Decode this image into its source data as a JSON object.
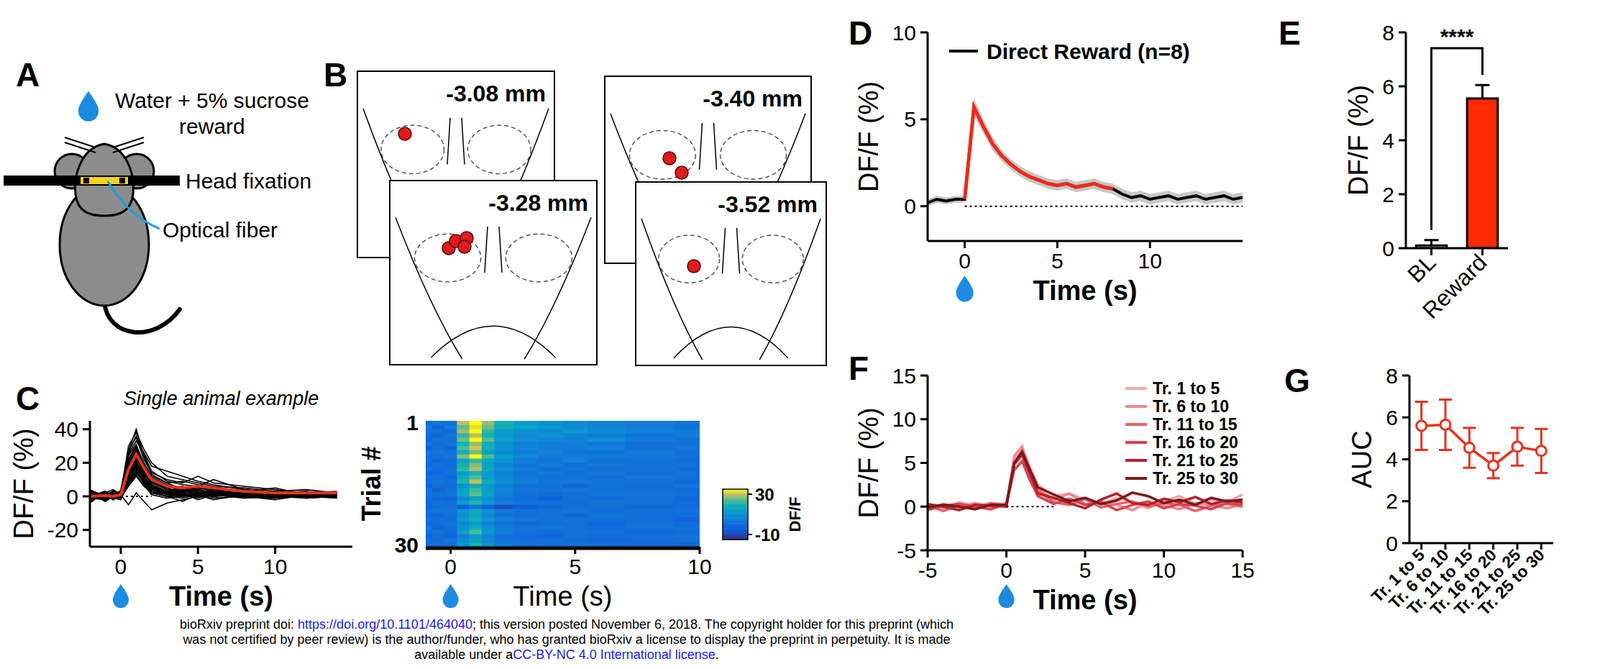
{
  "panel_a": {
    "panel": "A",
    "reward": [
      "Water + 5% sucrose",
      "reward"
    ],
    "fixation": "Head fixation",
    "fiber": "Optical fiber"
  },
  "panel_b": {
    "panel": "B",
    "sections": [
      "-3.08 mm",
      "-3.28 mm",
      "-3.40 mm",
      "-3.52 mm"
    ]
  },
  "chart_data": [
    {
      "type": "line",
      "panel": "C",
      "title": "Single animal example",
      "xlabel": "Time (s)",
      "ylabel": "DF/F (%)",
      "x": [
        -2,
        -1,
        -0.5,
        0,
        0.5,
        1,
        1.5,
        2,
        3,
        4,
        5,
        6,
        8,
        10,
        12,
        14
      ],
      "xlim": [
        -2,
        15
      ],
      "xticks": [
        0,
        5,
        10
      ],
      "ylim": [
        -30,
        45
      ],
      "yticks": [
        -20,
        0,
        20,
        40
      ],
      "color": "#000000",
      "trials": [
        [
          2,
          -1,
          3,
          2,
          30,
          38,
          28,
          20,
          12,
          10,
          8,
          6,
          5,
          3,
          4,
          2
        ],
        [
          0,
          3,
          -2,
          4,
          25,
          33,
          26,
          18,
          15,
          12,
          9,
          7,
          4,
          2,
          3,
          1
        ],
        [
          -3,
          2,
          1,
          0,
          28,
          35,
          22,
          14,
          10,
          8,
          12,
          8,
          6,
          4,
          2,
          3
        ],
        [
          4,
          0,
          -1,
          3,
          22,
          30,
          20,
          12,
          8,
          9,
          7,
          5,
          3,
          5,
          1,
          2
        ],
        [
          1,
          -2,
          2,
          1,
          26,
          36,
          25,
          15,
          9,
          7,
          6,
          10,
          4,
          2,
          3,
          0
        ],
        [
          -1,
          1,
          0,
          2,
          20,
          28,
          18,
          9,
          6,
          4,
          5,
          3,
          2,
          1,
          2,
          1
        ],
        [
          3,
          -3,
          1,
          -2,
          24,
          31,
          19,
          11,
          7,
          5,
          4,
          6,
          2,
          3,
          0,
          2
        ],
        [
          0,
          2,
          4,
          1,
          18,
          26,
          14,
          8,
          5,
          6,
          3,
          2,
          4,
          1,
          2,
          -1
        ],
        [
          -2,
          0,
          1,
          3,
          27,
          40,
          24,
          13,
          8,
          4,
          5,
          4,
          3,
          2,
          1,
          2
        ],
        [
          2,
          1,
          -1,
          0,
          15,
          22,
          16,
          10,
          4,
          3,
          6,
          2,
          1,
          0,
          2,
          1
        ],
        [
          1,
          -1,
          2,
          0,
          19,
          27,
          15,
          7,
          3,
          5,
          2,
          4,
          1,
          2,
          -1,
          0
        ],
        [
          -4,
          3,
          0,
          1,
          22,
          29,
          17,
          9,
          5,
          2,
          3,
          1,
          2,
          0,
          1,
          2
        ],
        [
          0,
          -2,
          -1,
          2,
          12,
          20,
          12,
          6,
          2,
          4,
          1,
          3,
          0,
          2,
          1,
          0
        ],
        [
          3,
          1,
          2,
          -1,
          17,
          24,
          13,
          8,
          4,
          1,
          2,
          0,
          3,
          1,
          0,
          1
        ],
        [
          -1,
          0,
          3,
          1,
          21,
          30,
          18,
          10,
          6,
          3,
          4,
          2,
          1,
          -1,
          2,
          0
        ],
        [
          2,
          -3,
          0,
          0,
          10,
          18,
          11,
          5,
          1,
          2,
          -2,
          1,
          0,
          3,
          1,
          2
        ],
        [
          0,
          2,
          -2,
          1,
          14,
          23,
          14,
          7,
          3,
          2,
          4,
          2,
          1,
          0,
          -1,
          1
        ],
        [
          -2,
          1,
          1,
          3,
          16,
          25,
          15,
          6,
          2,
          0,
          1,
          3,
          2,
          1,
          0,
          1
        ],
        [
          1,
          0,
          -1,
          -2,
          8,
          14,
          9,
          3,
          0,
          -3,
          1,
          0,
          2,
          -1,
          1,
          0
        ],
        [
          4,
          -1,
          2,
          0,
          13,
          21,
          12,
          5,
          2,
          1,
          0,
          2,
          1,
          0,
          2,
          -1
        ],
        [
          -1,
          -2,
          0,
          1,
          -5,
          2,
          -3,
          -8,
          -4,
          -2,
          0,
          1,
          -1,
          0,
          1,
          0
        ],
        [
          0,
          1,
          3,
          2,
          11,
          17,
          10,
          4,
          1,
          2,
          3,
          0,
          1,
          2,
          0,
          1
        ],
        [
          2,
          0,
          -1,
          1,
          9,
          16,
          8,
          2,
          0,
          1,
          -1,
          2,
          0,
          1,
          -1,
          0
        ],
        [
          -3,
          2,
          1,
          0,
          12,
          19,
          11,
          6,
          3,
          1,
          2,
          1,
          0,
          -2,
          1,
          1
        ],
        [
          1,
          -1,
          0,
          2,
          7,
          13,
          7,
          1,
          -1,
          0,
          1,
          -2,
          1,
          0,
          2,
          0
        ],
        [
          0,
          3,
          -2,
          1,
          10,
          18,
          9,
          4,
          2,
          3,
          1,
          0,
          2,
          1,
          0,
          -1
        ],
        [
          -1,
          0,
          2,
          0,
          14,
          24,
          12,
          5,
          1,
          0,
          2,
          1,
          -1,
          0,
          1,
          0
        ],
        [
          2,
          -2,
          1,
          -1,
          6,
          12,
          6,
          2,
          0,
          -1,
          1,
          0,
          1,
          2,
          0,
          1
        ],
        [
          0,
          1,
          0,
          3,
          9,
          15,
          8,
          3,
          1,
          2,
          0,
          -1,
          0,
          1,
          1,
          0
        ],
        [
          -2,
          0,
          1,
          1,
          11,
          20,
          10,
          4,
          2,
          1,
          1,
          2,
          0,
          -1,
          0,
          1
        ]
      ],
      "mean": {
        "color": "#e8321e",
        "values": [
          0,
          0.5,
          0,
          1,
          16,
          25,
          17,
          10,
          6,
          5,
          6,
          5,
          3,
          2,
          2,
          2
        ]
      },
      "heatmap": {
        "ylabel": "Trial #",
        "xlabel": "Time (s)",
        "xlim": [
          -1,
          10
        ],
        "xticks": [
          0,
          5,
          10
        ],
        "yticks": [
          1,
          30
        ],
        "color_range": [
          -15,
          35
        ],
        "color_ticks": [
          30,
          -10
        ],
        "color_label": "DF/F"
      }
    },
    {
      "type": "line",
      "panel": "D",
      "xlabel": "Time (s)",
      "ylabel": "DF/F (%)",
      "x": [
        -2,
        -1.5,
        -1,
        -0.5,
        0,
        0.5,
        1,
        1.5,
        2,
        2.5,
        3,
        3.5,
        4,
        4.5,
        5,
        5.5,
        6,
        6.5,
        7,
        7.5,
        8,
        8.5,
        9,
        9.5,
        10,
        10.5,
        11,
        11.5,
        12,
        12.5,
        13,
        13.5,
        14,
        14.5,
        15
      ],
      "xlim": [
        -2,
        15
      ],
      "xticks": [
        0,
        5,
        10
      ],
      "ylim": [
        -2,
        10
      ],
      "yticks": [
        0,
        5,
        10
      ],
      "legend": "upper left",
      "series": [
        {
          "name": "Direct Reward (n=8)",
          "color": "#000000",
          "values": [
            0.2,
            0.4,
            0.3,
            0.4,
            0.4,
            5.7,
            4.6,
            3.6,
            2.9,
            2.4,
            2.0,
            1.7,
            1.5,
            1.3,
            1.2,
            1.3,
            1.1,
            1.2,
            1.3,
            1.1,
            1.0,
            0.7,
            0.5,
            0.6,
            0.4,
            0.5,
            0.6,
            0.4,
            0.5,
            0.6,
            0.4,
            0.5,
            0.6,
            0.4,
            0.5
          ],
          "sem": [
            0.2,
            0.2,
            0.2,
            0.2,
            0.2,
            0.5,
            0.4,
            0.4,
            0.3,
            0.3,
            0.3,
            0.3,
            0.3,
            0.3,
            0.3,
            0.3,
            0.3,
            0.3,
            0.3,
            0.3,
            0.3,
            0.3,
            0.3,
            0.3,
            0.3,
            0.3,
            0.3,
            0.3,
            0.3,
            0.3,
            0.3,
            0.3,
            0.3,
            0.3,
            0.3
          ]
        }
      ],
      "highlight": {
        "x": [
          0,
          8
        ],
        "color": "#ee2a1b"
      }
    },
    {
      "type": "bar",
      "panel": "E",
      "ylabel": "DF/F (%)",
      "categories": [
        "BL",
        "Reward"
      ],
      "values": [
        0.1,
        5.55
      ],
      "errors": [
        0.2,
        0.5
      ],
      "colors": [
        "#ffffff",
        "#ff2a00"
      ],
      "ylim": [
        0,
        8
      ],
      "yticks": [
        0,
        2,
        4,
        6,
        8
      ],
      "annotation": {
        "text": "****",
        "between": [
          0,
          1
        ]
      }
    },
    {
      "type": "line",
      "panel": "F",
      "xlabel": "Time (s)",
      "ylabel": "DF/F (%)",
      "x": [
        -5,
        -4,
        -3,
        -2,
        -1,
        0,
        0.5,
        1,
        1.5,
        2,
        3,
        4,
        5,
        6,
        7,
        8,
        9,
        10,
        11,
        12,
        13,
        14,
        15
      ],
      "xlim": [
        -5,
        15
      ],
      "xticks": [
        -5,
        0,
        5,
        10,
        15
      ],
      "ylim": [
        -5,
        15
      ],
      "yticks": [
        -5,
        0,
        5,
        10,
        15
      ],
      "legend": "upper right",
      "series": [
        {
          "name": "Tr. 1 to 5",
          "color": "#f4a6a6",
          "values": [
            0.2,
            -0.3,
            0.5,
            0.1,
            0.3,
            0.4,
            5.5,
            6.8,
            4.5,
            2.5,
            1.2,
            1.5,
            0.8,
            0.2,
            1.0,
            0.5,
            -0.2,
            0.6,
            1.2,
            0.3,
            0.8,
            0.5,
            1.4
          ]
        },
        {
          "name": "Tr. 6 to 10",
          "color": "#ee8a8f",
          "values": [
            -0.2,
            0.3,
            -0.1,
            0.4,
            0.0,
            0.2,
            5.8,
            6.9,
            4.0,
            2.0,
            0.8,
            1.5,
            0.3,
            0.6,
            0.2,
            -0.4,
            0.5,
            0.1,
            -0.3,
            0.4,
            0.2,
            -0.2,
            0.3
          ]
        },
        {
          "name": "Tr. 11 to 15",
          "color": "#e8606e",
          "values": [
            0.1,
            -0.5,
            0.2,
            -0.2,
            0.4,
            0.1,
            4.8,
            5.9,
            3.5,
            1.8,
            0.5,
            0.2,
            0.9,
            -0.1,
            0.3,
            0.6,
            0.0,
            0.4,
            0.2,
            -0.5,
            0.1,
            0.3,
            0.0
          ]
        },
        {
          "name": "Tr. 16 to 20",
          "color": "#d9424f",
          "values": [
            -0.4,
            0.1,
            0.3,
            0.0,
            -0.3,
            0.3,
            4.2,
            5.2,
            3.0,
            1.2,
            0.3,
            0.9,
            0.2,
            0.5,
            -0.4,
            0.2,
            0.6,
            -0.2,
            0.3,
            0.1,
            -0.3,
            0.4,
            0.2
          ]
        },
        {
          "name": "Tr. 21 to 25",
          "color": "#b81f2a",
          "values": [
            0.3,
            0.0,
            -0.4,
            0.2,
            0.1,
            0.0,
            4.9,
            6.0,
            3.8,
            1.5,
            1.0,
            0.4,
            -0.2,
            0.8,
            1.5,
            0.4,
            0.2,
            0.9,
            0.5,
            1.1,
            0.3,
            0.7,
            0.5
          ]
        },
        {
          "name": "Tr. 25 to 30",
          "color": "#7a1a1a",
          "values": [
            -0.1,
            0.2,
            0.0,
            -0.3,
            0.2,
            0.2,
            5.0,
            6.3,
            4.2,
            2.2,
            1.4,
            0.6,
            1.0,
            0.3,
            0.7,
            1.6,
            1.2,
            0.4,
            0.8,
            0.2,
            1.0,
            0.6,
            0.8
          ]
        }
      ]
    },
    {
      "type": "line",
      "panel": "G",
      "ylabel": "AUC",
      "categories": [
        "Tr. 1 to 5",
        "Tr. 6 to 10",
        "Tr. 11 to 15",
        "Tr. 16 to 20",
        "Tr. 21 to 25",
        "Tr. 25 to 30"
      ],
      "values": [
        5.6,
        5.65,
        4.55,
        3.7,
        4.6,
        4.4
      ],
      "errors": [
        1.15,
        1.2,
        0.95,
        0.6,
        0.9,
        1.05
      ],
      "color": "#e8321e",
      "marker": "circle",
      "ylim": [
        0,
        8
      ],
      "yticks": [
        0,
        2,
        4,
        6,
        8
      ]
    }
  ],
  "footer": {
    "line1_pre": "bioRxiv preprint doi: ",
    "link": "https://doi.org/10.1101/464040",
    "line1_post": "; this version posted November 6, 2018. The copyright holder for this preprint (which",
    "line2": "was not certified by peer review) is the author/funder, who has granted bioRxiv a license to display the preprint in perpetuity. It is made",
    "line3_pre": "available under a",
    "license": "CC-BY-NC 4.0 International license",
    "line3_post": "."
  }
}
